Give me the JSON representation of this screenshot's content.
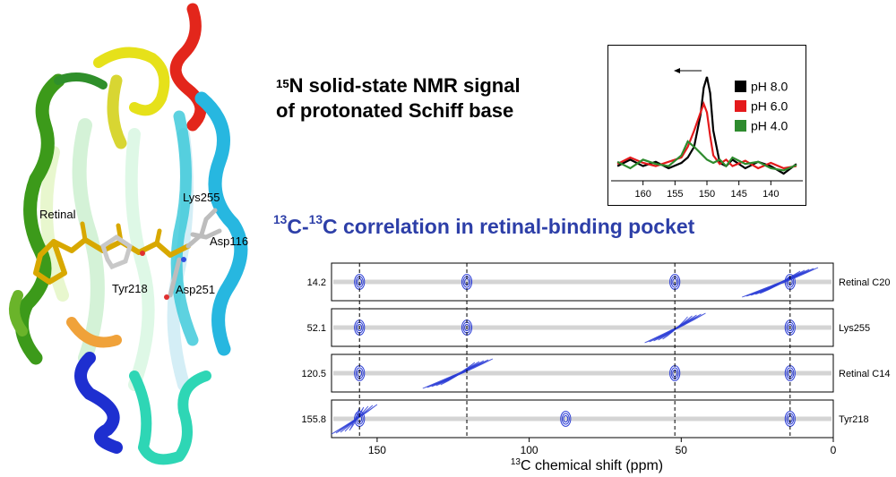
{
  "protein": {
    "labels": [
      "Retinal",
      "Lys255",
      "Asp116",
      "Tyr218",
      "Asp251"
    ]
  },
  "nmr_title": {
    "superscript": "15",
    "line1": "N solid-state NMR signal",
    "line2": "of protonated Schiff base"
  },
  "corr_title": {
    "sup1": "13",
    "part1": "C-",
    "sup2": "13",
    "part2": "C correlation in retinal-binding pocket",
    "color": "#2d3fa8"
  },
  "chart_data": [
    {
      "type": "line",
      "xlim": [
        165,
        135
      ],
      "x_ticks": [
        160,
        155,
        150,
        145,
        140
      ],
      "x_reversed": true,
      "arrow_direction": "left",
      "series": [
        {
          "name": "pH 8.0",
          "color": "#000000",
          "x": [
            164,
            162,
            160,
            158,
            156,
            154,
            153,
            152,
            151,
            150.5,
            150,
            149.5,
            149,
            148,
            147,
            146,
            144,
            142,
            140,
            138,
            136
          ],
          "y": [
            0.12,
            0.18,
            0.12,
            0.16,
            0.1,
            0.15,
            0.2,
            0.3,
            0.6,
            0.85,
            0.95,
            0.8,
            0.45,
            0.15,
            0.12,
            0.18,
            0.1,
            0.16,
            0.12,
            0.05,
            0.14
          ]
        },
        {
          "name": "pH 6.0",
          "color": "#e41a1c",
          "x": [
            164,
            162,
            160,
            158,
            156,
            154,
            153,
            152,
            151,
            150.5,
            150,
            149.5,
            149,
            148,
            147,
            146,
            144,
            142,
            140,
            138,
            136
          ],
          "y": [
            0.14,
            0.2,
            0.15,
            0.12,
            0.16,
            0.2,
            0.3,
            0.45,
            0.62,
            0.7,
            0.62,
            0.4,
            0.22,
            0.14,
            0.18,
            0.12,
            0.17,
            0.1,
            0.15,
            0.1,
            0.12
          ]
        },
        {
          "name": "pH 4.0",
          "color": "#2e8b2e",
          "x": [
            164,
            162,
            160,
            158,
            156,
            154,
            153,
            152,
            151,
            150,
            149,
            148,
            147,
            146,
            144,
            142,
            140,
            138,
            136
          ],
          "y": [
            0.16,
            0.1,
            0.18,
            0.14,
            0.12,
            0.22,
            0.35,
            0.3,
            0.24,
            0.18,
            0.15,
            0.18,
            0.12,
            0.2,
            0.14,
            0.16,
            0.1,
            0.08,
            0.13
          ]
        }
      ]
    },
    {
      "type": "heatmap",
      "xlabel_sup": "13",
      "xlabel": "C chemical shift (ppm)",
      "xlim": [
        165,
        0
      ],
      "x_ticks": [
        150,
        100,
        50,
        0
      ],
      "panels": [
        {
          "y_value": "14.2",
          "label": "Retinal C20"
        },
        {
          "y_value": "52.1",
          "label": "Lys255"
        },
        {
          "y_value": "120.5",
          "label": "Retinal C14"
        },
        {
          "y_value": "155.8",
          "label": "Tyr218"
        }
      ],
      "crosspeak_columns_ppm": [
        155.8,
        120.5,
        52.1,
        14.2
      ],
      "crosspeaks": [
        {
          "panel": 0,
          "x": 155.8
        },
        {
          "panel": 0,
          "x": 120.5
        },
        {
          "panel": 0,
          "x": 52.1
        },
        {
          "panel": 0,
          "x": 14.2
        },
        {
          "panel": 1,
          "x": 155.8
        },
        {
          "panel": 1,
          "x": 120.5
        },
        {
          "panel": 1,
          "x": 14.2
        },
        {
          "panel": 2,
          "x": 155.8
        },
        {
          "panel": 2,
          "x": 52.1
        },
        {
          "panel": 2,
          "x": 14.2
        },
        {
          "panel": 3,
          "x": 155.8
        },
        {
          "panel": 3,
          "x": 88
        },
        {
          "panel": 3,
          "x": 14.2
        }
      ],
      "diagonal_regions": [
        {
          "panel": 0,
          "from": 30,
          "to": 5
        },
        {
          "panel": 1,
          "from": 62,
          "to": 42
        },
        {
          "panel": 2,
          "from": 135,
          "to": 112
        },
        {
          "panel": 3,
          "from": 165,
          "to": 150
        }
      ],
      "contour_color": "#2a3cd6"
    }
  ]
}
